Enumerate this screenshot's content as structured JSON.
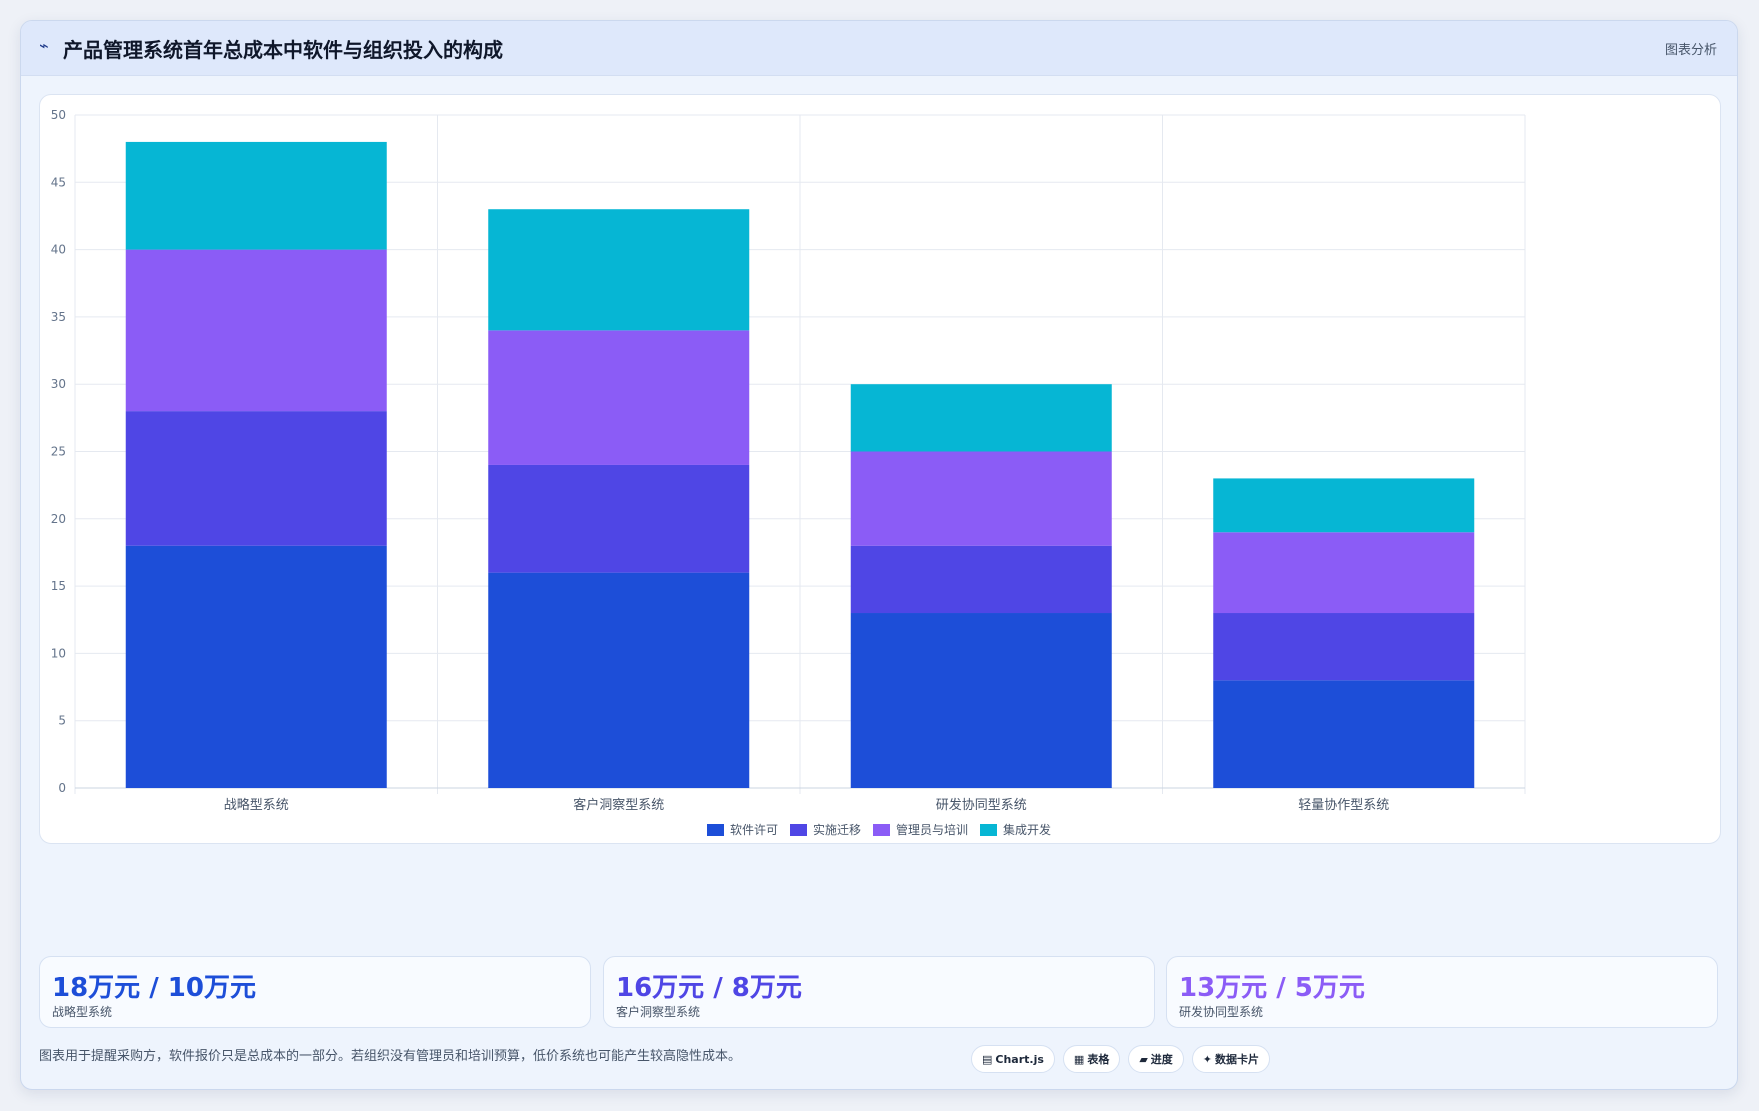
{
  "header": {
    "icon": "wave-icon",
    "title": "产品管理系统首年总成本中软件与组织投入的构成",
    "right_label": "图表分析"
  },
  "chart_data": {
    "type": "bar",
    "stacked": true,
    "categories": [
      "战略型系统",
      "客户洞察型系统",
      "研发协同型系统",
      "轻量协作型系统"
    ],
    "series": [
      {
        "name": "软件许可",
        "values": [
          18,
          16,
          13,
          8
        ],
        "color": "#1d4ed8"
      },
      {
        "name": "实施迁移",
        "values": [
          10,
          8,
          5,
          5
        ],
        "color": "#4f46e5"
      },
      {
        "name": "管理员与培训",
        "values": [
          12,
          10,
          7,
          6
        ],
        "color": "#8b5cf6"
      },
      {
        "name": "集成开发",
        "values": [
          8,
          9,
          5,
          4
        ],
        "color": "#06b6d4"
      }
    ],
    "yticks": [
      0,
      5,
      10,
      15,
      20,
      25,
      30,
      35,
      40,
      45,
      50
    ],
    "ylim": [
      0,
      50
    ],
    "grid": true,
    "legend_position": "bottom"
  },
  "stats": [
    {
      "value": "18万元 / 10万元",
      "label": "战略型系统",
      "color": "#1d4ed8"
    },
    {
      "value": "16万元 / 8万元",
      "label": "客户洞察型系统",
      "color": "#4f46e5"
    },
    {
      "value": "13万元 / 5万元",
      "label": "研发协同型系统",
      "color": "#8b5cf6"
    }
  ],
  "footnote": "图表用于提醒采购方，软件报价只是总成本的一部分。若组织没有管理员和培训预算，低价系统也可能产生较高隐性成本。",
  "chips": [
    {
      "icon": "chart-icon",
      "glyph": "▤",
      "label": "Chart.js"
    },
    {
      "icon": "table-icon",
      "glyph": "▦",
      "label": "表格"
    },
    {
      "icon": "progress-icon",
      "glyph": "▰",
      "label": "进度"
    },
    {
      "icon": "card-icon",
      "glyph": "✦",
      "label": "数据卡片"
    }
  ]
}
